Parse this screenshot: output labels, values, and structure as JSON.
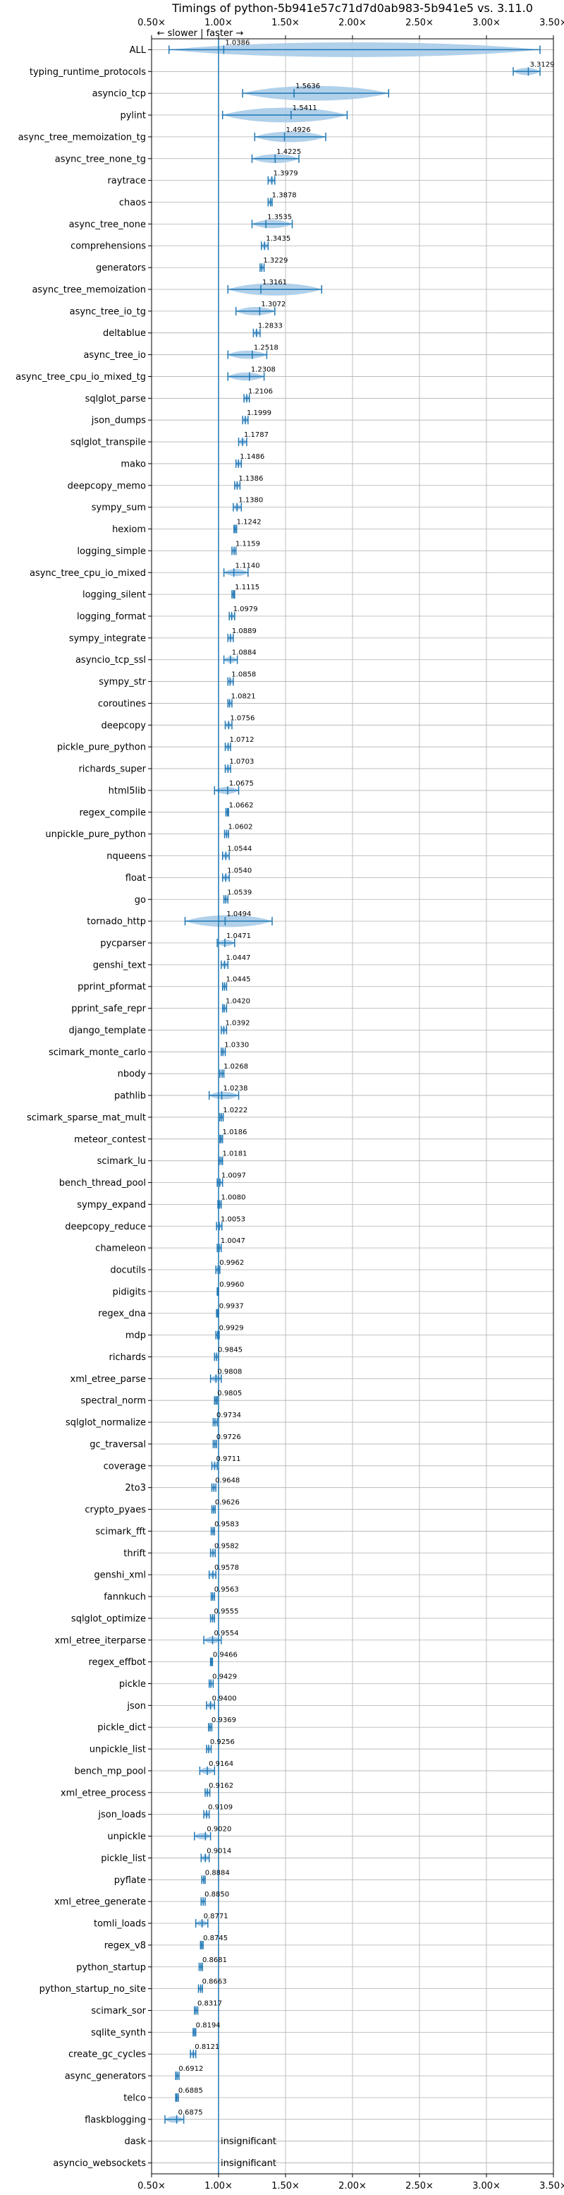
{
  "chart_data": {
    "type": "violin",
    "title": "Timings of python-5b941e57c71d7d0ab983-5b941e5 vs. 3.11.0",
    "annotation": "← slower | faster →",
    "xlim": [
      0.5,
      3.5
    ],
    "xticks": [
      0.5,
      1.0,
      1.5,
      2.0,
      2.5,
      3.0,
      3.5
    ],
    "xtick_labels": [
      "0.50×",
      "1.00×",
      "1.50×",
      "2.00×",
      "2.50×",
      "3.00×",
      "3.50×"
    ],
    "reference_line": 1.0,
    "grid": true,
    "colors": {
      "violin": "#a8cbe8",
      "line": "#1f77b4",
      "grid": "#b0b0b0"
    },
    "insignificant_label": "insignificant",
    "benchmarks": [
      {
        "name": "ALL",
        "value": 1.0386,
        "label": "1.0386",
        "min": 0.63,
        "max": 3.4
      },
      {
        "name": "typing_runtime_protocols",
        "value": 3.3129,
        "label": "3.3129",
        "min": 3.2,
        "max": 3.4
      },
      {
        "name": "asyncio_tcp",
        "value": 1.5636,
        "label": "1.5636",
        "min": 1.18,
        "max": 2.27
      },
      {
        "name": "pylint",
        "value": 1.5411,
        "label": "1.5411",
        "min": 1.03,
        "max": 1.96
      },
      {
        "name": "async_tree_memoization_tg",
        "value": 1.4926,
        "label": "1.4926",
        "min": 1.27,
        "max": 1.8
      },
      {
        "name": "async_tree_none_tg",
        "value": 1.4225,
        "label": "1.4225",
        "min": 1.25,
        "max": 1.6
      },
      {
        "name": "raytrace",
        "value": 1.3979,
        "label": "1.3979",
        "min": 1.37,
        "max": 1.42
      },
      {
        "name": "chaos",
        "value": 1.3878,
        "label": "1.3878",
        "min": 1.37,
        "max": 1.4
      },
      {
        "name": "async_tree_none",
        "value": 1.3535,
        "label": "1.3535",
        "min": 1.25,
        "max": 1.55
      },
      {
        "name": "comprehensions",
        "value": 1.3435,
        "label": "1.3435",
        "min": 1.32,
        "max": 1.37
      },
      {
        "name": "generators",
        "value": 1.3229,
        "label": "1.3229",
        "min": 1.31,
        "max": 1.34
      },
      {
        "name": "async_tree_memoization",
        "value": 1.3161,
        "label": "1.3161",
        "min": 1.07,
        "max": 1.77
      },
      {
        "name": "async_tree_io_tg",
        "value": 1.3072,
        "label": "1.3072",
        "min": 1.13,
        "max": 1.42
      },
      {
        "name": "deltablue",
        "value": 1.2833,
        "label": "1.2833",
        "min": 1.26,
        "max": 1.31
      },
      {
        "name": "async_tree_io",
        "value": 1.2518,
        "label": "1.2518",
        "min": 1.07,
        "max": 1.36
      },
      {
        "name": "async_tree_cpu_io_mixed_tg",
        "value": 1.2308,
        "label": "1.2308",
        "min": 1.07,
        "max": 1.34
      },
      {
        "name": "sqlglot_parse",
        "value": 1.2106,
        "label": "1.2106",
        "min": 1.19,
        "max": 1.23
      },
      {
        "name": "json_dumps",
        "value": 1.1999,
        "label": "1.1999",
        "min": 1.18,
        "max": 1.22
      },
      {
        "name": "sqlglot_transpile",
        "value": 1.1787,
        "label": "1.1787",
        "min": 1.15,
        "max": 1.21
      },
      {
        "name": "mako",
        "value": 1.1486,
        "label": "1.1486",
        "min": 1.13,
        "max": 1.17
      },
      {
        "name": "deepcopy_memo",
        "value": 1.1386,
        "label": "1.1386",
        "min": 1.12,
        "max": 1.16
      },
      {
        "name": "sympy_sum",
        "value": 1.138,
        "label": "1.1380",
        "min": 1.11,
        "max": 1.17
      },
      {
        "name": "hexiom",
        "value": 1.1242,
        "label": "1.1242",
        "min": 1.115,
        "max": 1.135
      },
      {
        "name": "logging_simple",
        "value": 1.1159,
        "label": "1.1159",
        "min": 1.1,
        "max": 1.13
      },
      {
        "name": "async_tree_cpu_io_mixed",
        "value": 1.114,
        "label": "1.1140",
        "min": 1.04,
        "max": 1.22
      },
      {
        "name": "logging_silent",
        "value": 1.1115,
        "label": "1.1115",
        "min": 1.1,
        "max": 1.12
      },
      {
        "name": "logging_format",
        "value": 1.0979,
        "label": "1.0979",
        "min": 1.08,
        "max": 1.12
      },
      {
        "name": "sympy_integrate",
        "value": 1.0889,
        "label": "1.0889",
        "min": 1.07,
        "max": 1.11
      },
      {
        "name": "asyncio_tcp_ssl",
        "value": 1.0884,
        "label": "1.0884",
        "min": 1.04,
        "max": 1.14
      },
      {
        "name": "sympy_str",
        "value": 1.0858,
        "label": "1.0858",
        "min": 1.07,
        "max": 1.11
      },
      {
        "name": "coroutines",
        "value": 1.0821,
        "label": "1.0821",
        "min": 1.07,
        "max": 1.1
      },
      {
        "name": "deepcopy",
        "value": 1.0756,
        "label": "1.0756",
        "min": 1.05,
        "max": 1.1
      },
      {
        "name": "pickle_pure_python",
        "value": 1.0712,
        "label": "1.0712",
        "min": 1.05,
        "max": 1.09
      },
      {
        "name": "richards_super",
        "value": 1.0703,
        "label": "1.0703",
        "min": 1.05,
        "max": 1.09
      },
      {
        "name": "html5lib",
        "value": 1.0675,
        "label": "1.0675",
        "min": 0.97,
        "max": 1.15
      },
      {
        "name": "regex_compile",
        "value": 1.0662,
        "label": "1.0662",
        "min": 1.055,
        "max": 1.075
      },
      {
        "name": "unpickle_pure_python",
        "value": 1.0602,
        "label": "1.0602",
        "min": 1.045,
        "max": 1.075
      },
      {
        "name": "nqueens",
        "value": 1.0544,
        "label": "1.0544",
        "min": 1.03,
        "max": 1.08
      },
      {
        "name": "float",
        "value": 1.054,
        "label": "1.0540",
        "min": 1.03,
        "max": 1.08
      },
      {
        "name": "go",
        "value": 1.0539,
        "label": "1.0539",
        "min": 1.04,
        "max": 1.07
      },
      {
        "name": "tornado_http",
        "value": 1.0494,
        "label": "1.0494",
        "min": 0.75,
        "max": 1.4
      },
      {
        "name": "pycparser",
        "value": 1.0471,
        "label": "1.0471",
        "min": 0.99,
        "max": 1.12
      },
      {
        "name": "genshi_text",
        "value": 1.0447,
        "label": "1.0447",
        "min": 1.02,
        "max": 1.07
      },
      {
        "name": "pprint_pformat",
        "value": 1.0445,
        "label": "1.0445",
        "min": 1.03,
        "max": 1.06
      },
      {
        "name": "pprint_safe_repr",
        "value": 1.042,
        "label": "1.0420",
        "min": 1.03,
        "max": 1.06
      },
      {
        "name": "django_template",
        "value": 1.0392,
        "label": "1.0392",
        "min": 1.02,
        "max": 1.06
      },
      {
        "name": "scimark_monte_carlo",
        "value": 1.033,
        "label": "1.0330",
        "min": 1.02,
        "max": 1.05
      },
      {
        "name": "nbody",
        "value": 1.0268,
        "label": "1.0268",
        "min": 1.01,
        "max": 1.04
      },
      {
        "name": "pathlib",
        "value": 1.0238,
        "label": "1.0238",
        "min": 0.93,
        "max": 1.15
      },
      {
        "name": "scimark_sparse_mat_mult",
        "value": 1.0222,
        "label": "1.0222",
        "min": 1.01,
        "max": 1.035
      },
      {
        "name": "meteor_contest",
        "value": 1.0186,
        "label": "1.0186",
        "min": 1.01,
        "max": 1.03
      },
      {
        "name": "scimark_lu",
        "value": 1.0181,
        "label": "1.0181",
        "min": 1.005,
        "max": 1.03
      },
      {
        "name": "bench_thread_pool",
        "value": 1.0097,
        "label": "1.0097",
        "min": 0.99,
        "max": 1.03
      },
      {
        "name": "sympy_expand",
        "value": 1.008,
        "label": "1.0080",
        "min": 0.995,
        "max": 1.02
      },
      {
        "name": "deepcopy_reduce",
        "value": 1.0053,
        "label": "1.0053",
        "min": 0.985,
        "max": 1.025
      },
      {
        "name": "chameleon",
        "value": 1.0047,
        "label": "1.0047",
        "min": 0.99,
        "max": 1.02
      },
      {
        "name": "docutils",
        "value": 0.9962,
        "label": "0.9962",
        "min": 0.98,
        "max": 1.01
      },
      {
        "name": "pidigits",
        "value": 0.996,
        "label": "0.9960",
        "min": 0.99,
        "max": 1.0
      },
      {
        "name": "regex_dna",
        "value": 0.9937,
        "label": "0.9937",
        "min": 0.985,
        "max": 1.0
      },
      {
        "name": "mdp",
        "value": 0.9929,
        "label": "0.9929",
        "min": 0.98,
        "max": 1.005
      },
      {
        "name": "richards",
        "value": 0.9845,
        "label": "0.9845",
        "min": 0.97,
        "max": 1.0
      },
      {
        "name": "xml_etree_parse",
        "value": 0.9808,
        "label": "0.9808",
        "min": 0.94,
        "max": 1.02
      },
      {
        "name": "spectral_norm",
        "value": 0.9805,
        "label": "0.9805",
        "min": 0.97,
        "max": 0.99
      },
      {
        "name": "sqlglot_normalize",
        "value": 0.9734,
        "label": "0.9734",
        "min": 0.96,
        "max": 0.99
      },
      {
        "name": "gc_traversal",
        "value": 0.9726,
        "label": "0.9726",
        "min": 0.96,
        "max": 0.985
      },
      {
        "name": "coverage",
        "value": 0.9711,
        "label": "0.9711",
        "min": 0.95,
        "max": 0.99
      },
      {
        "name": "2to3",
        "value": 0.9648,
        "label": "0.9648",
        "min": 0.95,
        "max": 0.98
      },
      {
        "name": "crypto_pyaes",
        "value": 0.9626,
        "label": "0.9626",
        "min": 0.95,
        "max": 0.975
      },
      {
        "name": "scimark_fft",
        "value": 0.9583,
        "label": "0.9583",
        "min": 0.945,
        "max": 0.97
      },
      {
        "name": "thrift",
        "value": 0.9582,
        "label": "0.9582",
        "min": 0.94,
        "max": 0.975
      },
      {
        "name": "genshi_xml",
        "value": 0.9578,
        "label": "0.9578",
        "min": 0.93,
        "max": 0.98
      },
      {
        "name": "fannkuch",
        "value": 0.9563,
        "label": "0.9563",
        "min": 0.945,
        "max": 0.97
      },
      {
        "name": "sqlglot_optimize",
        "value": 0.9555,
        "label": "0.9555",
        "min": 0.94,
        "max": 0.97
      },
      {
        "name": "xml_etree_iterparse",
        "value": 0.9554,
        "label": "0.9554",
        "min": 0.89,
        "max": 1.02
      },
      {
        "name": "regex_effbot",
        "value": 0.9466,
        "label": "0.9466",
        "min": 0.94,
        "max": 0.955
      },
      {
        "name": "pickle",
        "value": 0.9429,
        "label": "0.9429",
        "min": 0.93,
        "max": 0.96
      },
      {
        "name": "json",
        "value": 0.94,
        "label": "0.9400",
        "min": 0.91,
        "max": 0.97
      },
      {
        "name": "pickle_dict",
        "value": 0.9369,
        "label": "0.9369",
        "min": 0.925,
        "max": 0.95
      },
      {
        "name": "unpickle_list",
        "value": 0.9256,
        "label": "0.9256",
        "min": 0.91,
        "max": 0.945
      },
      {
        "name": "bench_mp_pool",
        "value": 0.9164,
        "label": "0.9164",
        "min": 0.86,
        "max": 0.97
      },
      {
        "name": "xml_etree_process",
        "value": 0.9162,
        "label": "0.9162",
        "min": 0.9,
        "max": 0.935
      },
      {
        "name": "json_loads",
        "value": 0.9109,
        "label": "0.9109",
        "min": 0.89,
        "max": 0.93
      },
      {
        "name": "unpickle",
        "value": 0.902,
        "label": "0.9020",
        "min": 0.82,
        "max": 0.94
      },
      {
        "name": "pickle_list",
        "value": 0.9014,
        "label": "0.9014",
        "min": 0.87,
        "max": 0.93
      },
      {
        "name": "pyflate",
        "value": 0.8884,
        "label": "0.8884",
        "min": 0.875,
        "max": 0.9
      },
      {
        "name": "xml_etree_generate",
        "value": 0.885,
        "label": "0.8850",
        "min": 0.87,
        "max": 0.9
      },
      {
        "name": "tomli_loads",
        "value": 0.8771,
        "label": "0.8771",
        "min": 0.83,
        "max": 0.92
      },
      {
        "name": "regex_v8",
        "value": 0.8745,
        "label": "0.8745",
        "min": 0.865,
        "max": 0.885
      },
      {
        "name": "python_startup",
        "value": 0.8681,
        "label": "0.8681",
        "min": 0.855,
        "max": 0.88
      },
      {
        "name": "python_startup_no_site",
        "value": 0.8663,
        "label": "0.8663",
        "min": 0.85,
        "max": 0.88
      },
      {
        "name": "scimark_sor",
        "value": 0.8317,
        "label": "0.8317",
        "min": 0.82,
        "max": 0.845
      },
      {
        "name": "sqlite_synth",
        "value": 0.8194,
        "label": "0.8194",
        "min": 0.81,
        "max": 0.83
      },
      {
        "name": "create_gc_cycles",
        "value": 0.8121,
        "label": "0.8121",
        "min": 0.79,
        "max": 0.83
      },
      {
        "name": "async_generators",
        "value": 0.6912,
        "label": "0.6912",
        "min": 0.68,
        "max": 0.705
      },
      {
        "name": "telco",
        "value": 0.6885,
        "label": "0.6885",
        "min": 0.68,
        "max": 0.7
      },
      {
        "name": "flaskblogging",
        "value": 0.6875,
        "label": "0.6875",
        "min": 0.6,
        "max": 0.74
      },
      {
        "name": "dask",
        "value": null,
        "label": null,
        "min": null,
        "max": null,
        "insignificant": true
      },
      {
        "name": "asyncio_websockets",
        "value": null,
        "label": null,
        "min": null,
        "max": null,
        "insignificant": true
      }
    ]
  }
}
